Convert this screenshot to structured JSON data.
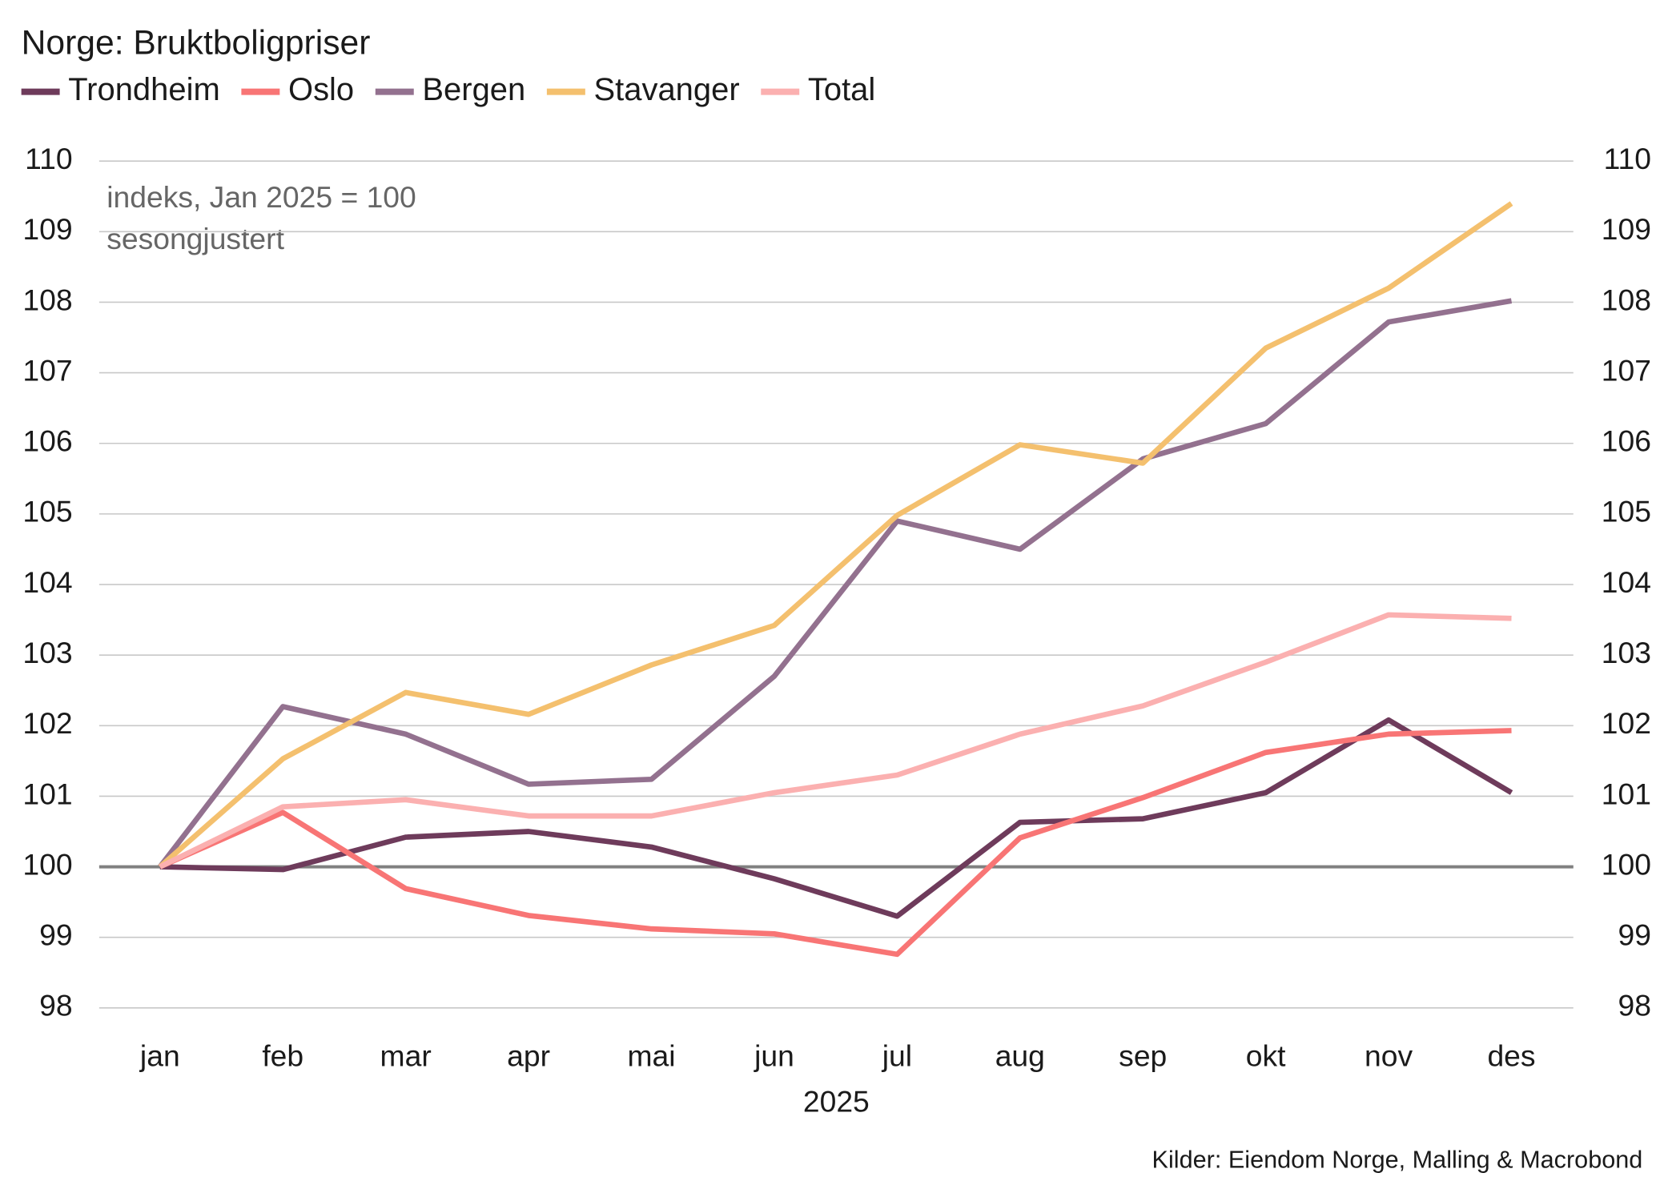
{
  "chart_data": {
    "type": "line",
    "title": "Norge: Bruktboligpriser",
    "annotations": [
      "indeks, Jan 2025 = 100",
      "sesongjustert"
    ],
    "x_label": "2025",
    "source": "Kilder: Eiendom Norge, Malling & Macrobond",
    "categories": [
      "jan",
      "feb",
      "mar",
      "apr",
      "mai",
      "jun",
      "jul",
      "aug",
      "sep",
      "okt",
      "nov",
      "des"
    ],
    "series": [
      {
        "name": "Trondheim",
        "color": "#6e3b5b",
        "values": [
          100,
          99.96,
          100.42,
          100.5,
          100.28,
          99.83,
          99.3,
          100.63,
          100.68,
          101.05,
          102.08,
          101.05
        ]
      },
      {
        "name": "Oslo",
        "color": "#f87575",
        "values": [
          100,
          100.77,
          99.69,
          99.31,
          99.12,
          99.05,
          98.76,
          100.41,
          100.98,
          101.62,
          101.88,
          101.93
        ]
      },
      {
        "name": "Bergen",
        "color": "#93718f",
        "values": [
          100,
          102.27,
          101.88,
          101.17,
          101.24,
          102.7,
          104.9,
          104.5,
          105.78,
          106.28,
          107.72,
          108.02
        ]
      },
      {
        "name": "Stavanger",
        "color": "#f4c06e",
        "values": [
          100,
          101.53,
          102.47,
          102.16,
          102.86,
          103.42,
          104.98,
          105.98,
          105.72,
          107.35,
          108.2,
          109.4
        ]
      },
      {
        "name": "Total",
        "color": "#fbb0b0",
        "values": [
          100,
          100.85,
          100.95,
          100.72,
          100.72,
          101.05,
          101.3,
          101.88,
          102.28,
          102.9,
          103.57,
          103.52
        ]
      }
    ],
    "ylim": [
      98,
      110
    ],
    "yticks": [
      98,
      99,
      100,
      101,
      102,
      103,
      104,
      105,
      106,
      107,
      108,
      109,
      110
    ],
    "y2lim": [
      98,
      110
    ],
    "y2ticks": [
      98,
      99,
      100,
      101,
      102,
      103,
      104,
      105,
      106,
      107,
      108,
      109,
      110
    ],
    "reference_line": 100,
    "grid": true,
    "legend": "top"
  }
}
